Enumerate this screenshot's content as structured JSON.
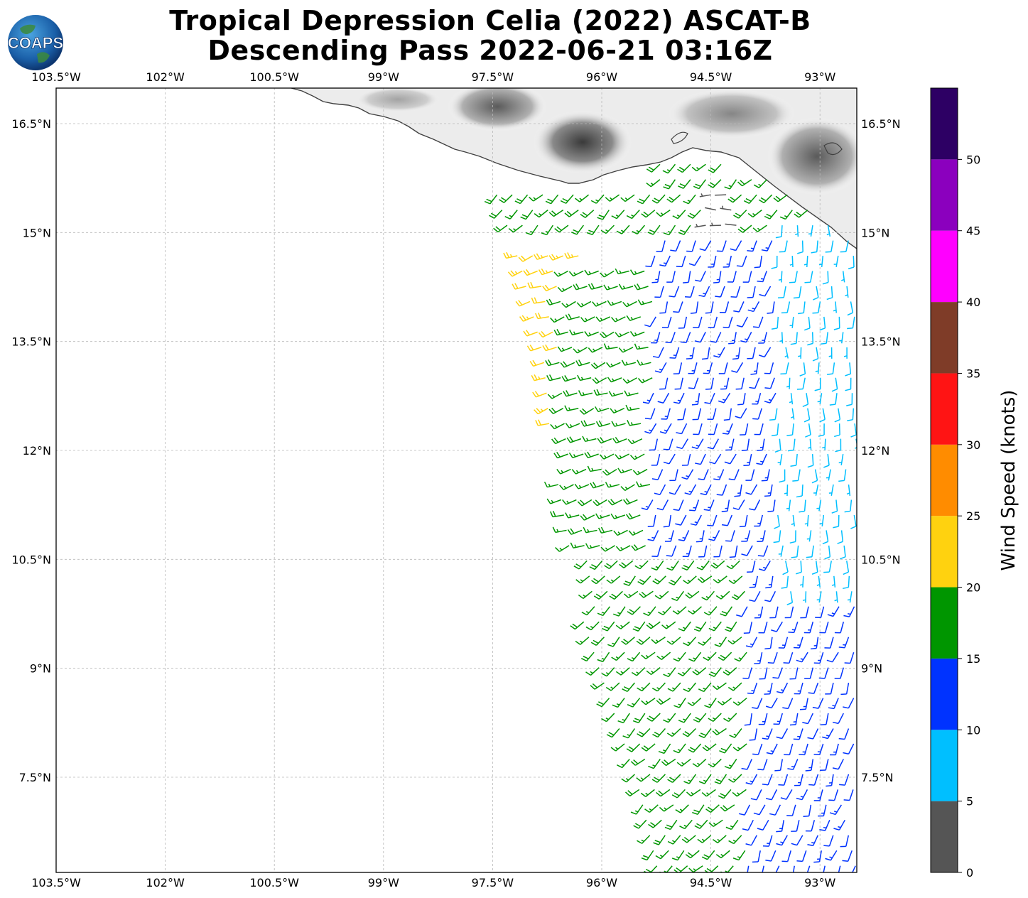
{
  "title": {
    "line1": "Tropical Depression Celia (2022) ASCAT-B",
    "line2": "Descending Pass 2022-06-21 03:16Z"
  },
  "logo": {
    "text": "COAPS",
    "icon": "globe-icon"
  },
  "map": {
    "lon_range": [
      -103.5,
      -92.5
    ],
    "lat_range": [
      6.0,
      16.8
    ],
    "grid": true,
    "lon_ticks": [
      "103.5°W",
      "102°W",
      "100.5°W",
      "99°W",
      "97.5°W",
      "96°W",
      "94.5°W",
      "93°W"
    ],
    "lon_tick_values": [
      -103.5,
      -102,
      -100.5,
      -99,
      -97.5,
      -96,
      -94.5,
      -93
    ],
    "lat_ticks": [
      "16.5°N",
      "15°N",
      "13.5°N",
      "12°N",
      "10.5°N",
      "9°N",
      "7.5°N"
    ],
    "lat_tick_values": [
      16.5,
      15,
      13.5,
      12,
      10.5,
      9,
      7.5
    ],
    "land_shading": "grayscale elevation",
    "coastline_color": "#404040"
  },
  "colorbar": {
    "label": "Wind Speed (knots)",
    "ticks": [
      "0",
      "5",
      "10",
      "15",
      "20",
      "25",
      "30",
      "35",
      "40",
      "45",
      "50"
    ],
    "bins": [
      {
        "min": 0,
        "max": 5,
        "color": "#555555"
      },
      {
        "min": 5,
        "max": 10,
        "color": "#00bfff"
      },
      {
        "min": 10,
        "max": 15,
        "color": "#0033ff"
      },
      {
        "min": 15,
        "max": 20,
        "color": "#009600"
      },
      {
        "min": 20,
        "max": 25,
        "color": "#ffd20f"
      },
      {
        "min": 25,
        "max": 30,
        "color": "#ff8c00"
      },
      {
        "min": 30,
        "max": 35,
        "color": "#ff1414"
      },
      {
        "min": 35,
        "max": 40,
        "color": "#7f3c28"
      },
      {
        "min": 40,
        "max": 45,
        "color": "#ff00ff"
      },
      {
        "min": 45,
        "max": 50,
        "color": "#8b00be"
      },
      {
        "min": 50,
        "max": 55,
        "color": "#2d0064"
      }
    ]
  },
  "chart_data": {
    "type": "wind-barb-map",
    "swath_edge_west": [
      [
        -97.5,
        15.7
      ],
      [
        -97.1,
        14.5
      ],
      [
        -96.8,
        13.3
      ],
      [
        -96.7,
        12.1
      ],
      [
        -96.5,
        11.0
      ],
      [
        -96.3,
        9.8
      ],
      [
        -95.9,
        8.6
      ],
      [
        -95.5,
        7.4
      ],
      [
        -95.2,
        6.1
      ]
    ],
    "wind_regions": [
      {
        "name": "north-band",
        "lat_range": [
          15.0,
          16.2
        ],
        "speed_knots": 18,
        "direction_deg": 225
      },
      {
        "name": "gulf-yellow",
        "lat_range": [
          12.2,
          14.7
        ],
        "lon_range": [
          -97.2,
          -96.2
        ],
        "speed_knots": 22,
        "direction_deg": 250
      },
      {
        "name": "central-green",
        "lat_range": [
          10.6,
          14.5
        ],
        "lon_range": [
          -96.6,
          -95.0
        ],
        "speed_knots": 17,
        "direction_deg": 250
      },
      {
        "name": "east-blue",
        "lat_range": [
          6.1,
          15.0
        ],
        "lon_range": [
          -95.3,
          -92.5
        ],
        "speed_knots": 12,
        "direction_deg": 200
      },
      {
        "name": "east-light",
        "lat_range": [
          10.0,
          15.3
        ],
        "lon_range": [
          -93.6,
          -92.5
        ],
        "speed_knots": 8,
        "direction_deg": 180
      },
      {
        "name": "south-green",
        "lat_range": [
          6.1,
          10.6
        ],
        "lon_range": [
          -96.3,
          -94.0
        ],
        "speed_knots": 17,
        "direction_deg": 225
      },
      {
        "name": "calm-coast",
        "lat_range": [
          15.0,
          15.6
        ],
        "lon_range": [
          -94.6,
          -94.1
        ],
        "speed_knots": 3,
        "direction_deg": 270
      }
    ]
  }
}
